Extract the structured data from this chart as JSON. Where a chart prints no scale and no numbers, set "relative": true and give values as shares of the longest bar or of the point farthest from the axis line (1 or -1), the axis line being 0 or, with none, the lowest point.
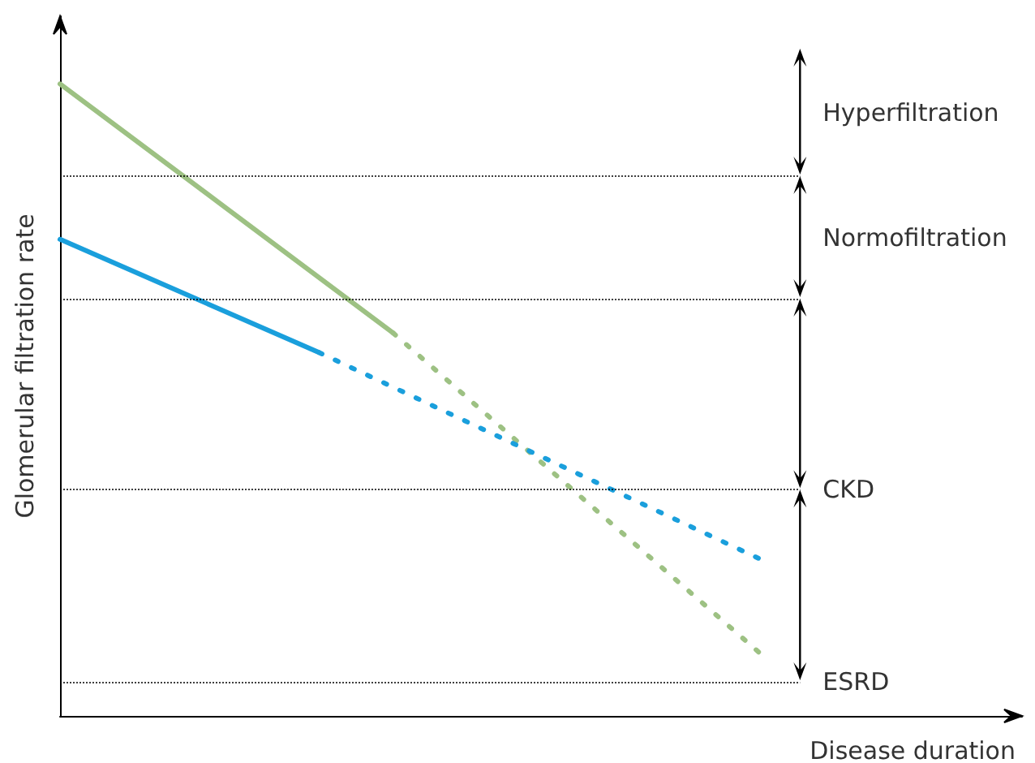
{
  "chart_data": {
    "type": "line",
    "relative": true,
    "xlabel": "Disease duration",
    "ylabel": "Glomerular filtration rate",
    "categories": [
      null,
      null,
      null,
      null,
      null,
      null,
      null,
      null,
      null,
      null,
      null,
      null,
      null,
      null,
      null,
      null,
      null,
      null,
      null,
      null,
      null,
      null,
      null,
      null,
      null,
      null,
      null
    ],
    "series": [
      {
        "color": "#9dc183",
        "line_style": "solid",
        "values": [
          1.0,
          null,
          null,
          null,
          null,
          null,
          null,
          null,
          null,
          0.606,
          null,
          null,
          null,
          null,
          null,
          null,
          null,
          null,
          null,
          null,
          null,
          null,
          null,
          null,
          null,
          null,
          null
        ]
      },
      {
        "color": "#9dc183",
        "line_style": "dotted",
        "values": [
          null,
          null,
          null,
          null,
          null,
          null,
          null,
          null,
          null,
          0.606,
          null,
          null,
          null,
          null,
          null,
          null,
          null,
          null,
          null,
          0.095,
          null,
          null,
          null,
          null,
          null,
          null,
          null
        ]
      },
      {
        "color": "#1a9fdc",
        "line_style": "solid",
        "values": [
          0.754,
          null,
          null,
          null,
          null,
          null,
          null,
          0.575,
          null,
          null,
          null,
          null,
          null,
          null,
          null,
          null,
          null,
          null,
          null,
          null,
          null,
          null,
          null,
          null,
          null,
          null,
          null
        ]
      },
      {
        "color": "#1a9fdc",
        "line_style": "dotted",
        "values": [
          null,
          null,
          null,
          null,
          null,
          null,
          null,
          0.575,
          null,
          null,
          null,
          null,
          null,
          null,
          null,
          null,
          null,
          null,
          null,
          0.246,
          null,
          null,
          null,
          null,
          null,
          null,
          null
        ]
      }
    ],
    "ref_lines": [
      {
        "axis": "y",
        "value": 0.854,
        "label": null
      },
      {
        "axis": "y",
        "value": 0.66,
        "label": null
      },
      {
        "axis": "y",
        "value": 0.358,
        "label": "CKD"
      },
      {
        "axis": "y",
        "value": 0.054,
        "label": "ESRD"
      }
    ],
    "annotations": [
      "Hyperfiltration",
      "Normofiltration"
    ],
    "marker": "none"
  }
}
